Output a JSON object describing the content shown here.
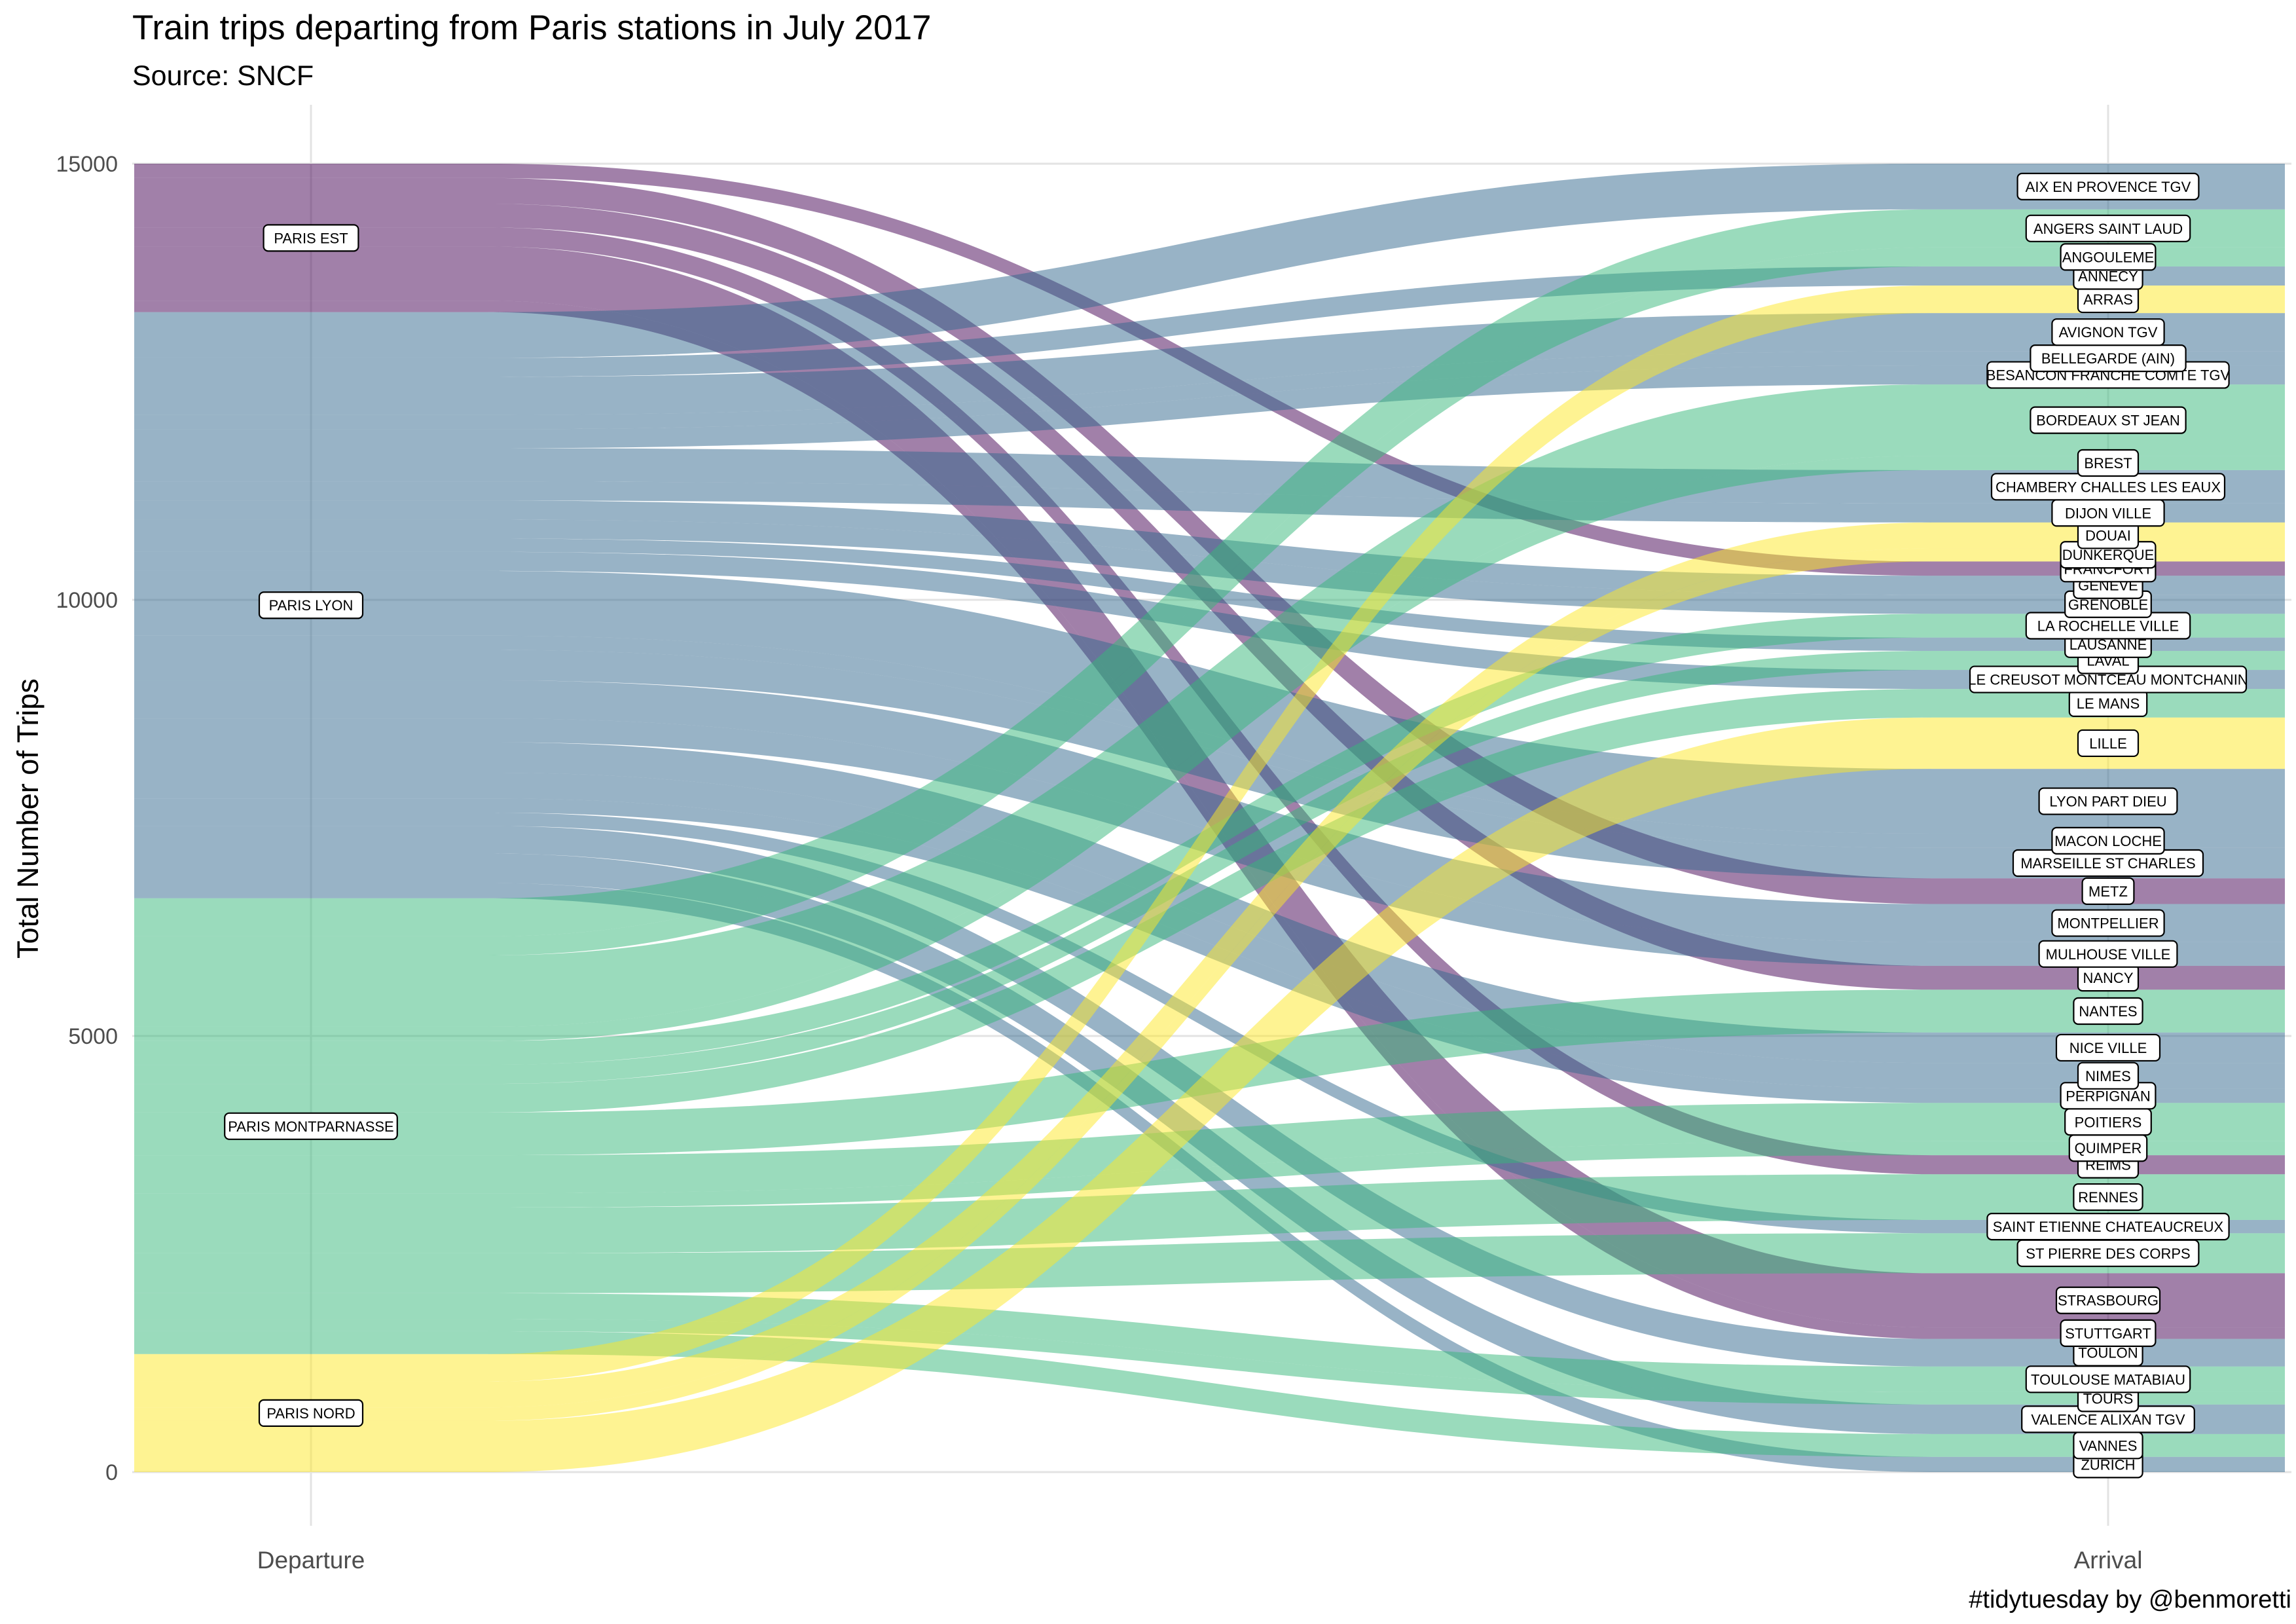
{
  "chart_data": {
    "type": "alluvial",
    "title": "Train trips departing from Paris stations in July 2017",
    "subtitle": "Source: SNCF",
    "caption": "#tidytuesday by @benmoretti",
    "ylabel": "Total Number of Trips",
    "xlabel": "",
    "axes": [
      "Departure",
      "Arrival"
    ],
    "ylim": [
      0,
      15000
    ],
    "yticks": [
      0,
      5000,
      10000,
      15000
    ],
    "grid": true,
    "legend": "none",
    "departure_colors": {
      "PARIS NORD": "#FDE725",
      "PARIS MONTPARNASSE": "#35B779",
      "PARIS LYON": "#31688E",
      "PARIS EST": "#440154"
    },
    "departures": [
      "PARIS NORD",
      "PARIS MONTPARNASSE",
      "PARIS LYON",
      "PARIS EST"
    ],
    "arrivals": [
      "ZURICH",
      "VANNES",
      "VALENCE ALIXAN TGV",
      "TOURS",
      "TOULOUSE MATABIAU",
      "TOULON",
      "STUTTGART",
      "STRASBOURG",
      "ST PIERRE DES CORPS",
      "SAINT ETIENNE CHATEAUCREUX",
      "RENNES",
      "REIMS",
      "QUIMPER",
      "POITIERS",
      "PERPIGNAN",
      "NIMES",
      "NICE VILLE",
      "NANTES",
      "NANCY",
      "MULHOUSE VILLE",
      "MONTPELLIER",
      "METZ",
      "MARSEILLE ST CHARLES",
      "MACON LOCHE",
      "LYON PART DIEU",
      "LILLE",
      "LE MANS",
      "LE CREUSOT MONTCEAU MONTCHANIN",
      "LAVAL",
      "LAUSANNE",
      "LA ROCHELLE VILLE",
      "GRENOBLE",
      "GENEVE",
      "FRANCFORT",
      "DUNKERQUE",
      "DOUAI",
      "DIJON VILLE",
      "CHAMBERY CHALLES LES EAUX",
      "BREST",
      "BORDEAUX ST JEAN",
      "BESANCON FRANCHE COMTE TGV",
      "BELLEGARDE (AIN)",
      "AVIGNON TGV",
      "ARRAS",
      "ANNECY",
      "ANGOULEME",
      "ANGERS SAINT LAUD",
      "AIX EN PROVENCE TGV"
    ],
    "flows": [
      {
        "from": "PARIS LYON",
        "to": "ZURICH",
        "value": 160
      },
      {
        "from": "PARIS MONTPARNASSE",
        "to": "VANNES",
        "value": 240
      },
      {
        "from": "PARIS LYON",
        "to": "VALENCE ALIXAN TGV",
        "value": 310
      },
      {
        "from": "PARIS MONTPARNASSE",
        "to": "TOURS",
        "value": 130
      },
      {
        "from": "PARIS MONTPARNASSE",
        "to": "TOULOUSE MATABIAU",
        "value": 270
      },
      {
        "from": "PARIS LYON",
        "to": "TOULON",
        "value": 290
      },
      {
        "from": "PARIS EST",
        "to": "STUTTGART",
        "value": 120
      },
      {
        "from": "PARIS EST",
        "to": "STRASBOURG",
        "value": 570
      },
      {
        "from": "PARIS MONTPARNASSE",
        "to": "ST PIERRE DES CORPS",
        "value": 420
      },
      {
        "from": "PARIS LYON",
        "to": "SAINT ETIENNE CHATEAUCREUX",
        "value": 140
      },
      {
        "from": "PARIS MONTPARNASSE",
        "to": "RENNES",
        "value": 480
      },
      {
        "from": "PARIS EST",
        "to": "REIMS",
        "value": 200
      },
      {
        "from": "PARIS MONTPARNASSE",
        "to": "QUIMPER",
        "value": 150
      },
      {
        "from": "PARIS MONTPARNASSE",
        "to": "POITIERS",
        "value": 400
      },
      {
        "from": "PARIS LYON",
        "to": "PERPIGNAN",
        "value": 150
      },
      {
        "from": "PARIS LYON",
        "to": "NIMES",
        "value": 270
      },
      {
        "from": "PARIS LYON",
        "to": "NICE VILLE",
        "value": 320
      },
      {
        "from": "PARIS MONTPARNASSE",
        "to": "NANTES",
        "value": 450
      },
      {
        "from": "PARIS EST",
        "to": "NANCY",
        "value": 250
      },
      {
        "from": "PARIS LYON",
        "to": "MULHOUSE VILLE",
        "value": 250
      },
      {
        "from": "PARIS LYON",
        "to": "MONTPELLIER",
        "value": 400
      },
      {
        "from": "PARIS EST",
        "to": "METZ",
        "value": 270
      },
      {
        "from": "PARIS LYON",
        "to": "MARSEILLE ST CHARLES",
        "value": 320
      },
      {
        "from": "PARIS LYON",
        "to": "MACON LOCHE",
        "value": 150
      },
      {
        "from": "PARIS LYON",
        "to": "LYON PART DIEU",
        "value": 680
      },
      {
        "from": "PARIS NORD",
        "to": "LILLE",
        "value": 540
      },
      {
        "from": "PARIS MONTPARNASSE",
        "to": "LE MANS",
        "value": 300
      },
      {
        "from": "PARIS LYON",
        "to": "LE CREUSOT MONTCEAU MONTCHANIN",
        "value": 200
      },
      {
        "from": "PARIS MONTPARNASSE",
        "to": "LAVAL",
        "value": 200
      },
      {
        "from": "PARIS LYON",
        "to": "LAUSANNE",
        "value": 140
      },
      {
        "from": "PARIS MONTPARNASSE",
        "to": "LA ROCHELLE VILLE",
        "value": 250
      },
      {
        "from": "PARIS LYON",
        "to": "GRENOBLE",
        "value": 200
      },
      {
        "from": "PARIS LYON",
        "to": "GENEVE",
        "value": 200
      },
      {
        "from": "PARIS EST",
        "to": "FRANCFORT",
        "value": 150
      },
      {
        "from": "PARIS NORD",
        "to": "DUNKERQUE",
        "value": 140
      },
      {
        "from": "PARIS NORD",
        "to": "DOUAI",
        "value": 270
      },
      {
        "from": "PARIS LYON",
        "to": "DIJON VILLE",
        "value": 200
      },
      {
        "from": "PARIS LYON",
        "to": "CHAMBERY CHALLES LES EAUX",
        "value": 350
      },
      {
        "from": "PARIS MONTPARNASSE",
        "to": "BREST",
        "value": 150
      },
      {
        "from": "PARIS MONTPARNASSE",
        "to": "BORDEAUX ST JEAN",
        "value": 750
      },
      {
        "from": "PARIS LYON",
        "to": "BESANCON FRANCHE COMTE TGV",
        "value": 200
      },
      {
        "from": "PARIS LYON",
        "to": "BELLEGARDE (AIN)",
        "value": 150
      },
      {
        "from": "PARIS LYON",
        "to": "AVIGNON TGV",
        "value": 400
      },
      {
        "from": "PARIS NORD",
        "to": "ARRAS",
        "value": 290
      },
      {
        "from": "PARIS LYON",
        "to": "ANNECY",
        "value": 200
      },
      {
        "from": "PARIS MONTPARNASSE",
        "to": "ANGOULEME",
        "value": 200
      },
      {
        "from": "PARIS MONTPARNASSE",
        "to": "ANGERS SAINT LAUD",
        "value": 400
      },
      {
        "from": "PARIS LYON",
        "to": "AIX EN PROVENCE TGV",
        "value": 480
      }
    ]
  }
}
